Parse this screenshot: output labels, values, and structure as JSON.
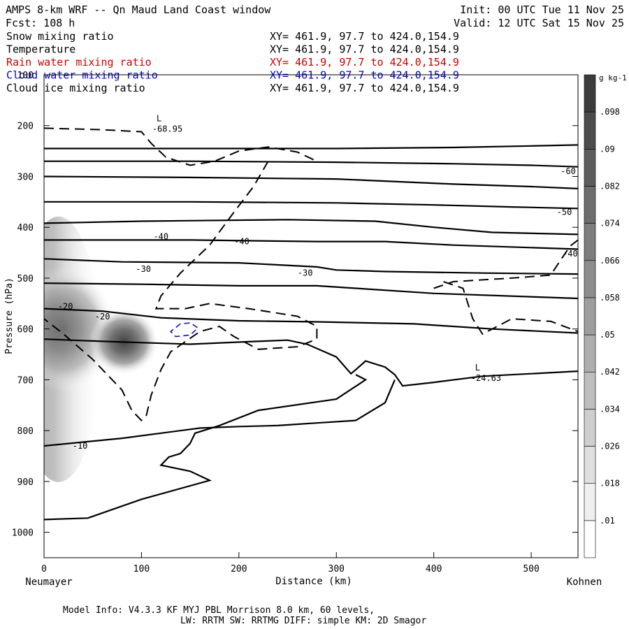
{
  "header": {
    "title": "AMPS 8-km WRF -- Qn Maud Land Coast window",
    "init": "Init: 00 UTC Tue 11 Nov 25",
    "fcst": "Fcst:  108 h",
    "valid": "Valid: 12 UTC Sat 15 Nov 25"
  },
  "legend": [
    {
      "label": "Snow mixing ratio",
      "xy": "XY= 461.9, 97.7 to 424.0,154.9",
      "color": "#000000"
    },
    {
      "label": "Temperature",
      "xy": "XY= 461.9, 97.7 to 424.0,154.9",
      "color": "#000000"
    },
    {
      "label": "Rain water mixing ratio",
      "xy": "XY= 461.9, 97.7 to 424.0,154.9",
      "color": "#cc0000"
    },
    {
      "label": "Cloud water mixing ratio",
      "xy": "XY= 461.9, 97.7 to 424.0,154.9",
      "color": "#0000cc"
    },
    {
      "label": "Cloud ice mixing ratio",
      "xy": "XY= 461.9, 97.7 to 424.0,154.9",
      "color": "#000000"
    }
  ],
  "footer": {
    "line1": "Model Info: V4.3.3   KF     MYJ PBL  Morrison              8.0 km,  60 levels,",
    "line2": "LW: RRTM SW: RRTMG   DIFF: simple KM: 2D Smagor"
  },
  "chart_data": {
    "type": "contour",
    "xlabel": "Distance (km)",
    "ylabel": "Pressure (hPa)",
    "x_end_labels": {
      "left": "Neumayer",
      "right": "Kohnen"
    },
    "xlim": [
      0,
      548
    ],
    "ylim_hpa": [
      1050,
      100
    ],
    "x_ticks": [
      0,
      100,
      200,
      300,
      400,
      500
    ],
    "y_ticks": [
      100,
      200,
      300,
      400,
      500,
      600,
      700,
      800,
      900,
      1000
    ],
    "colorbar": {
      "unit": "g kg-1",
      "levels": [
        0.01,
        0.018,
        0.026,
        0.034,
        0.042,
        0.05,
        0.058,
        0.066,
        0.074,
        0.082,
        0.09,
        0.098
      ],
      "labels": [
        ".01",
        ".018",
        ".026",
        ".034",
        ".042",
        ".05",
        ".058",
        ".066",
        ".074",
        ".082",
        ".09",
        ".098"
      ]
    },
    "temperature_labels": [
      {
        "text": "-60",
        "x": 538,
        "p": 290
      },
      {
        "text": "-50",
        "x": 534,
        "p": 370
      },
      {
        "text": "-40",
        "x": 120,
        "p": 418
      },
      {
        "text": "-40",
        "x": 203,
        "p": 428
      },
      {
        "text": "-40",
        "x": 540,
        "p": 452
      },
      {
        "text": "-30",
        "x": 102,
        "p": 482
      },
      {
        "text": "-30",
        "x": 268,
        "p": 490
      },
      {
        "text": "-20",
        "x": 22,
        "p": 556
      },
      {
        "text": "-20",
        "x": 60,
        "p": 576
      },
      {
        "text": "-10",
        "x": 37,
        "p": 830
      }
    ],
    "extrema": [
      {
        "symbol": "L",
        "value": "-68.95",
        "x": 118,
        "p": 200
      },
      {
        "symbol": "L",
        "value": "-24.63",
        "x": 445,
        "p": 690
      }
    ],
    "isotherm_pressures_left": [
      245,
      270,
      300,
      350,
      390,
      420,
      462,
      510,
      560,
      620,
      830,
      975
    ],
    "snow_max": {
      "x": 82,
      "p": 625,
      "value": 0.07
    }
  }
}
